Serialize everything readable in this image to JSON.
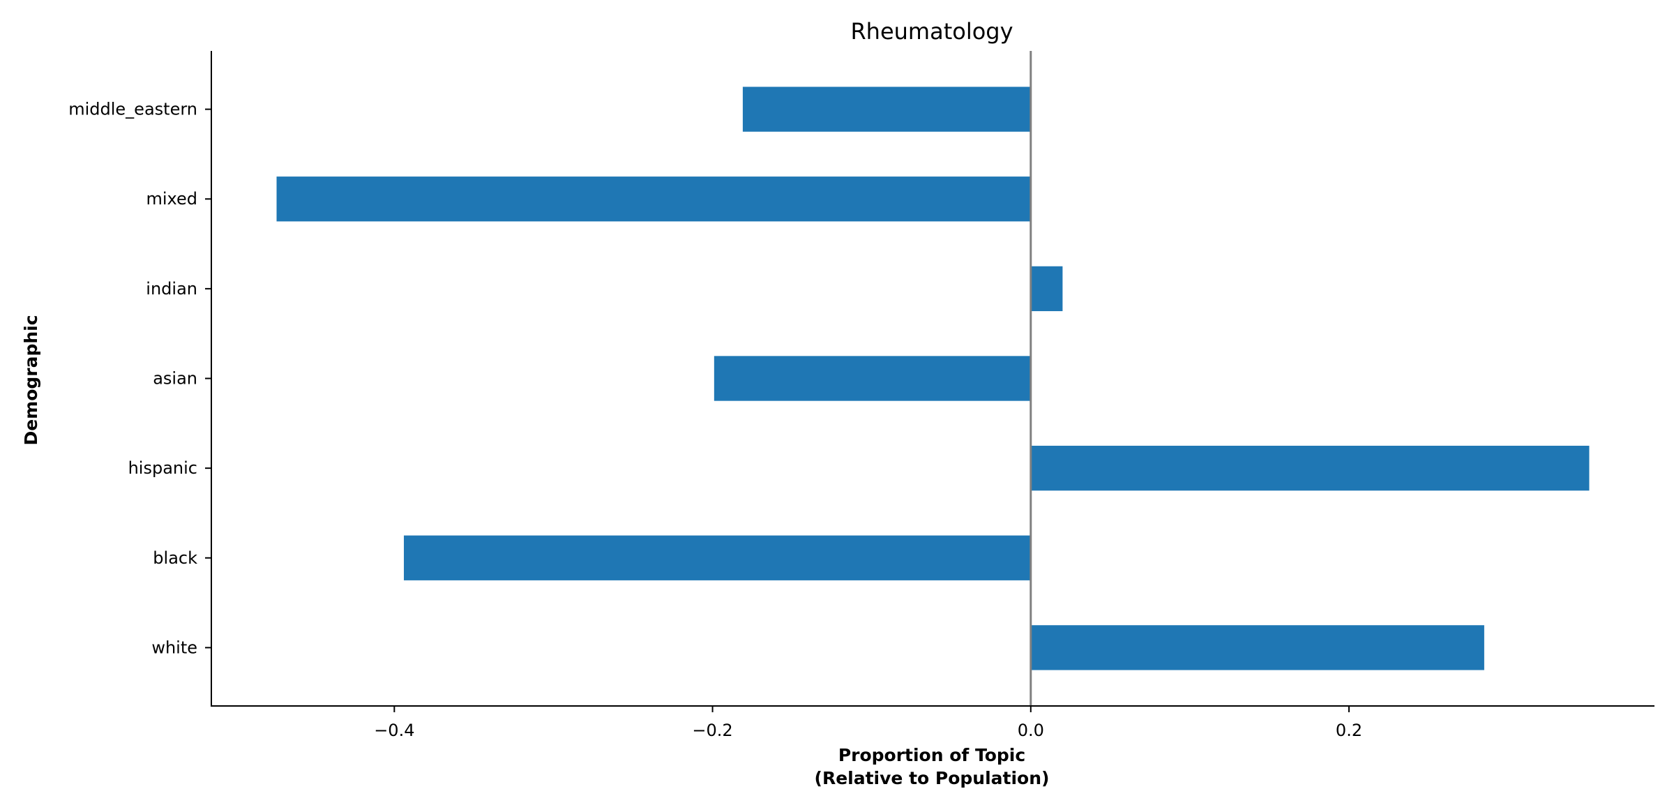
{
  "chart_data": {
    "type": "bar",
    "orientation": "horizontal",
    "title": "Rheumatology",
    "xlabel_line1": "Proportion of Topic",
    "xlabel_line2": "(Relative to Population)",
    "ylabel": "Demographic",
    "categories": [
      "middle_eastern",
      "mixed",
      "indian",
      "asian",
      "hispanic",
      "black",
      "white"
    ],
    "values": [
      -0.181,
      -0.474,
      0.02,
      -0.199,
      0.351,
      -0.394,
      0.285
    ],
    "xlim": [
      -0.515,
      0.392
    ],
    "xticks": [
      -0.4,
      -0.2,
      0.0,
      0.2
    ],
    "xtick_labels": [
      "−0.4",
      "−0.2",
      "0.0",
      "0.2"
    ],
    "bar_color": "#1f77b4",
    "zero_line_color": "#808080",
    "grid": false,
    "legend": "none"
  }
}
